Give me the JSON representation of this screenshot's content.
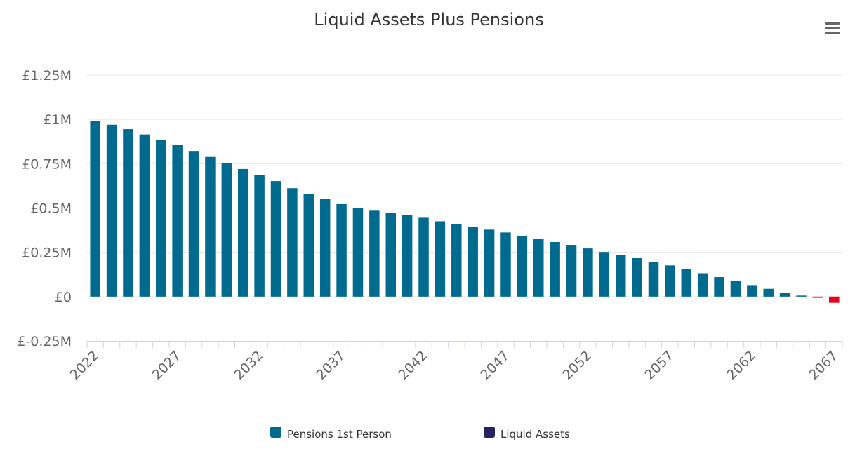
{
  "menu_icon": "hamburger-menu-icon",
  "colors": {
    "pensions": "#006b8f",
    "negative": "#e8001c",
    "liquid_assets": "#262262",
    "grid": "#e6e6e6",
    "axis": "#ccd6eb",
    "menu": "#666666"
  },
  "chart_data": {
    "type": "bar",
    "title": "Liquid Assets Plus Pensions",
    "xlabel": "",
    "ylabel": "",
    "ylim": [
      -250000,
      1250000
    ],
    "y_ticks": [
      -250000,
      0,
      250000,
      500000,
      750000,
      1000000,
      1250000
    ],
    "y_tick_labels": [
      "£-0.25M",
      "£0",
      "£0.25M",
      "£0.5M",
      "£0.75M",
      "£1M",
      "£1.25M"
    ],
    "x_tick_labels": [
      "2022",
      "2027",
      "2032",
      "2037",
      "2042",
      "2047",
      "2052",
      "2057",
      "2062",
      "2067"
    ],
    "categories": [
      2022,
      2023,
      2024,
      2025,
      2026,
      2027,
      2028,
      2029,
      2030,
      2031,
      2032,
      2033,
      2034,
      2035,
      2036,
      2037,
      2038,
      2039,
      2040,
      2041,
      2042,
      2043,
      2044,
      2045,
      2046,
      2047,
      2048,
      2049,
      2050,
      2051,
      2052,
      2053,
      2054,
      2055,
      2056,
      2057,
      2058,
      2059,
      2060,
      2061,
      2062,
      2063,
      2064,
      2065,
      2066,
      2067
    ],
    "grid": true,
    "legend_position": "bottom-center",
    "series": [
      {
        "name": "Pensions 1st Person",
        "color": "#006b8f",
        "values": [
          992000,
          970000,
          945000,
          915000,
          885000,
          855000,
          822000,
          788000,
          752000,
          720000,
          688000,
          652000,
          612000,
          580000,
          550000,
          522000,
          500000,
          485000,
          472000,
          460000,
          445000,
          425000,
          408000,
          393000,
          378000,
          362000,
          344000,
          326000,
          308000,
          292000,
          272000,
          252000,
          235000,
          217000,
          197000,
          176000,
          155000,
          132000,
          110000,
          88000,
          65000,
          44000,
          20000,
          4000,
          0,
          0
        ]
      },
      {
        "name": "Liquid Assets",
        "color": "#262262",
        "values": [
          0,
          0,
          0,
          0,
          0,
          0,
          0,
          0,
          0,
          0,
          0,
          0,
          0,
          0,
          0,
          0,
          0,
          0,
          0,
          0,
          0,
          0,
          0,
          0,
          0,
          0,
          0,
          0,
          0,
          0,
          0,
          0,
          0,
          0,
          0,
          0,
          0,
          0,
          0,
          0,
          0,
          0,
          0,
          0,
          -7000,
          -35000
        ]
      }
    ]
  }
}
